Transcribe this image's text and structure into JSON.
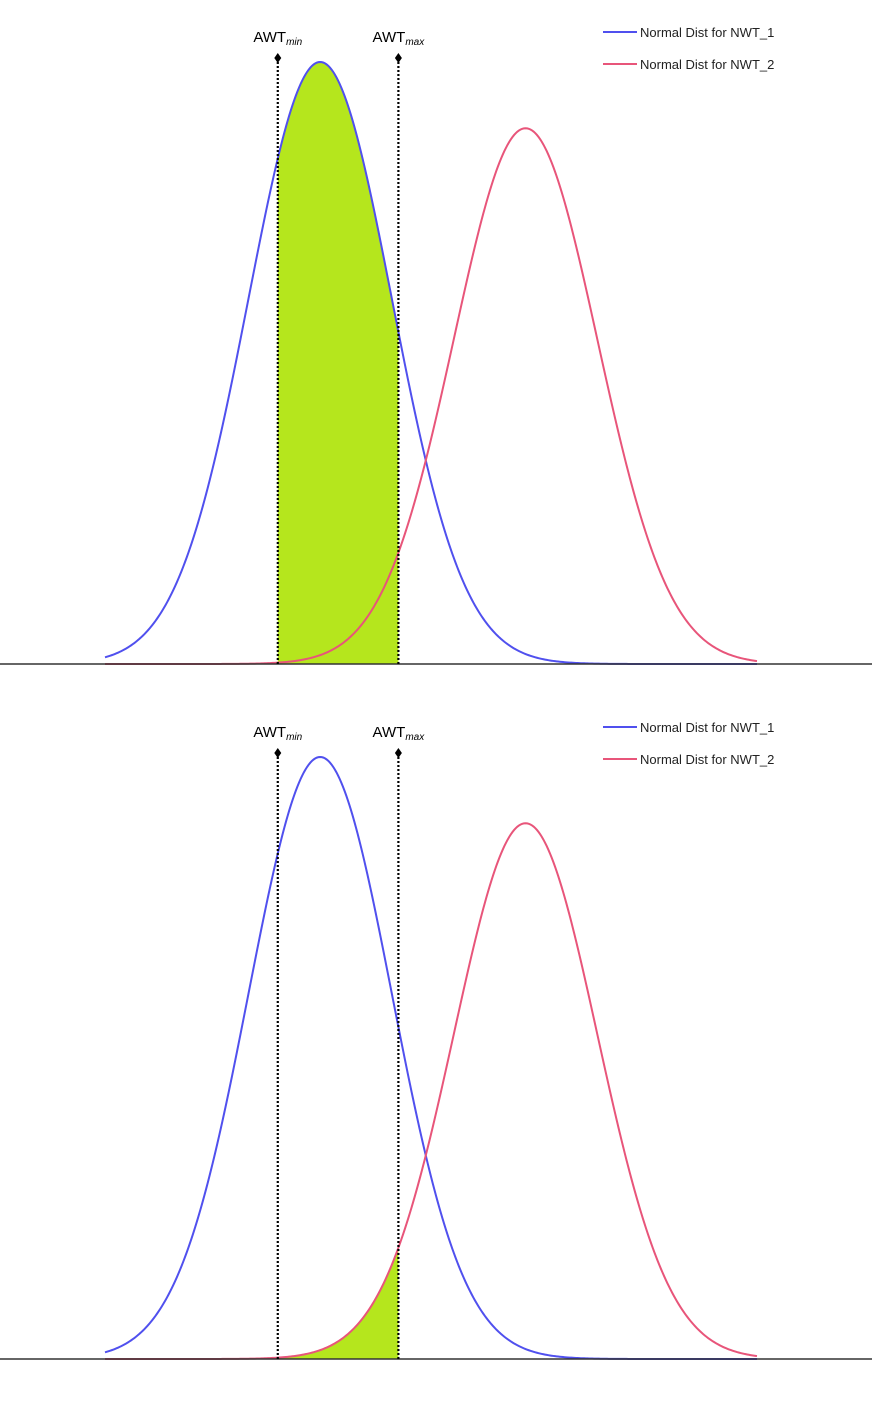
{
  "colors": {
    "nwt1": "#5050ee",
    "nwt2": "#e8557a",
    "fill": "#b5e61d",
    "axis": "#333333",
    "marker": "#000000"
  },
  "chart_data": [
    {
      "type": "line",
      "title": "",
      "xlabel": "",
      "ylabel": "",
      "grid": false,
      "legend_position": "top-right",
      "x_range": [
        0,
        100
      ],
      "y_range": [
        0,
        1
      ],
      "series": [
        {
          "name": "Normal Dist for NWT_1",
          "distribution": "normal",
          "mean": 33,
          "sd": 11,
          "peak": 1.0,
          "color": "#5050ee"
        },
        {
          "name": "Normal Dist for NWT_2",
          "distribution": "normal",
          "mean": 64.5,
          "sd": 11,
          "peak": 0.89,
          "color": "#e8557a"
        }
      ],
      "markers": [
        {
          "label": "AWT",
          "sub": "min",
          "x": 26.5
        },
        {
          "label": "AWT",
          "sub": "max",
          "x": 45
        }
      ],
      "shaded_region": {
        "from": 26.5,
        "to": 45,
        "under": "upper",
        "color": "#b5e61d"
      }
    },
    {
      "type": "line",
      "title": "",
      "xlabel": "",
      "ylabel": "",
      "grid": false,
      "legend_position": "top-right",
      "x_range": [
        0,
        100
      ],
      "y_range": [
        0,
        1
      ],
      "series": [
        {
          "name": "Normal Dist for NWT_1",
          "distribution": "normal",
          "mean": 33,
          "sd": 11,
          "peak": 1.0,
          "color": "#5050ee"
        },
        {
          "name": "Normal Dist for NWT_2",
          "distribution": "normal",
          "mean": 64.5,
          "sd": 11,
          "peak": 0.89,
          "color": "#e8557a"
        }
      ],
      "markers": [
        {
          "label": "AWT",
          "sub": "min",
          "x": 26.5
        },
        {
          "label": "AWT",
          "sub": "max",
          "x": 45
        }
      ],
      "shaded_region": {
        "from": 26.5,
        "to": 45,
        "under": "lower",
        "color": "#b5e61d"
      }
    }
  ]
}
